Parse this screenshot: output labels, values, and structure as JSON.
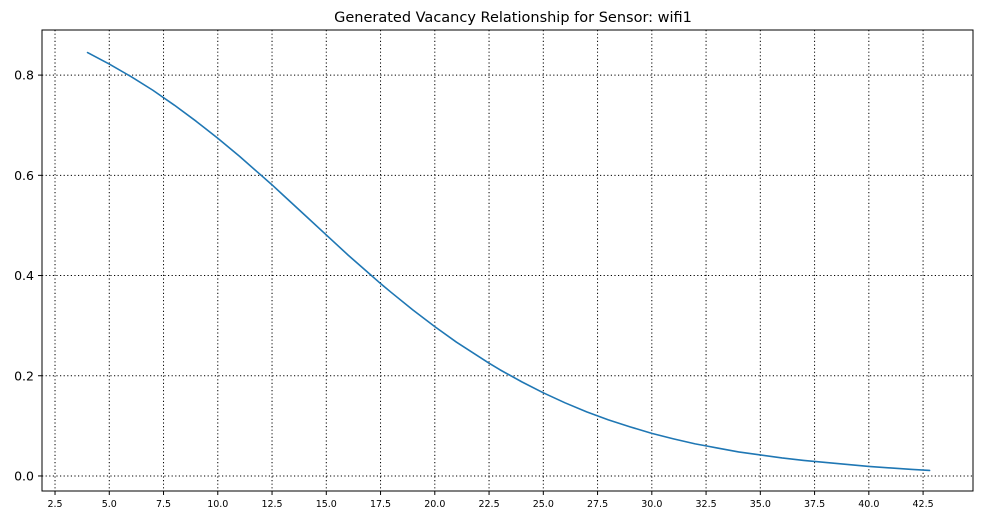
{
  "chart_data": {
    "type": "line",
    "title": "Generated Vacancy Relationship for Sensor: wifi1",
    "xlabel": "",
    "ylabel": "",
    "xlim": [
      1.9,
      44.8
    ],
    "ylim": [
      -0.03,
      0.89
    ],
    "grid": true,
    "grid_style": "dotted",
    "line_color": "#1f77b4",
    "x_ticks": [
      "2.5",
      "5.0",
      "7.5",
      "10.0",
      "12.5",
      "15.0",
      "17.5",
      "20.0",
      "22.5",
      "25.0",
      "27.5",
      "30.0",
      "32.5",
      "35.0",
      "37.5",
      "40.0",
      "42.5"
    ],
    "y_ticks": [
      "0.0",
      "0.2",
      "0.4",
      "0.6",
      "0.8"
    ],
    "series": [
      {
        "x": [
          4.0,
          5.0,
          6.0,
          7.0,
          8.0,
          9.0,
          10.0,
          11.0,
          12.0,
          12.5,
          13.0,
          14.0,
          15.0,
          16.0,
          17.0,
          17.5,
          18.0,
          19.0,
          20.0,
          21.0,
          22.0,
          22.5,
          23.0,
          24.0,
          25.0,
          26.0,
          27.0,
          27.5,
          28.0,
          29.0,
          30.0,
          31.0,
          32.0,
          32.5,
          33.0,
          34.0,
          35.0,
          36.0,
          37.0,
          37.5,
          38.0,
          39.0,
          40.0,
          41.0,
          42.0,
          42.8
        ],
        "y": [
          0.845,
          0.822,
          0.797,
          0.77,
          0.74,
          0.708,
          0.674,
          0.638,
          0.6,
          0.581,
          0.561,
          0.521,
          0.481,
          0.441,
          0.403,
          0.384,
          0.366,
          0.331,
          0.298,
          0.267,
          0.239,
          0.225,
          0.212,
          0.188,
          0.166,
          0.146,
          0.128,
          0.12,
          0.112,
          0.098,
          0.085,
          0.074,
          0.064,
          0.06,
          0.056,
          0.048,
          0.042,
          0.036,
          0.031,
          0.029,
          0.027,
          0.023,
          0.019,
          0.016,
          0.013,
          0.011
        ]
      }
    ]
  }
}
